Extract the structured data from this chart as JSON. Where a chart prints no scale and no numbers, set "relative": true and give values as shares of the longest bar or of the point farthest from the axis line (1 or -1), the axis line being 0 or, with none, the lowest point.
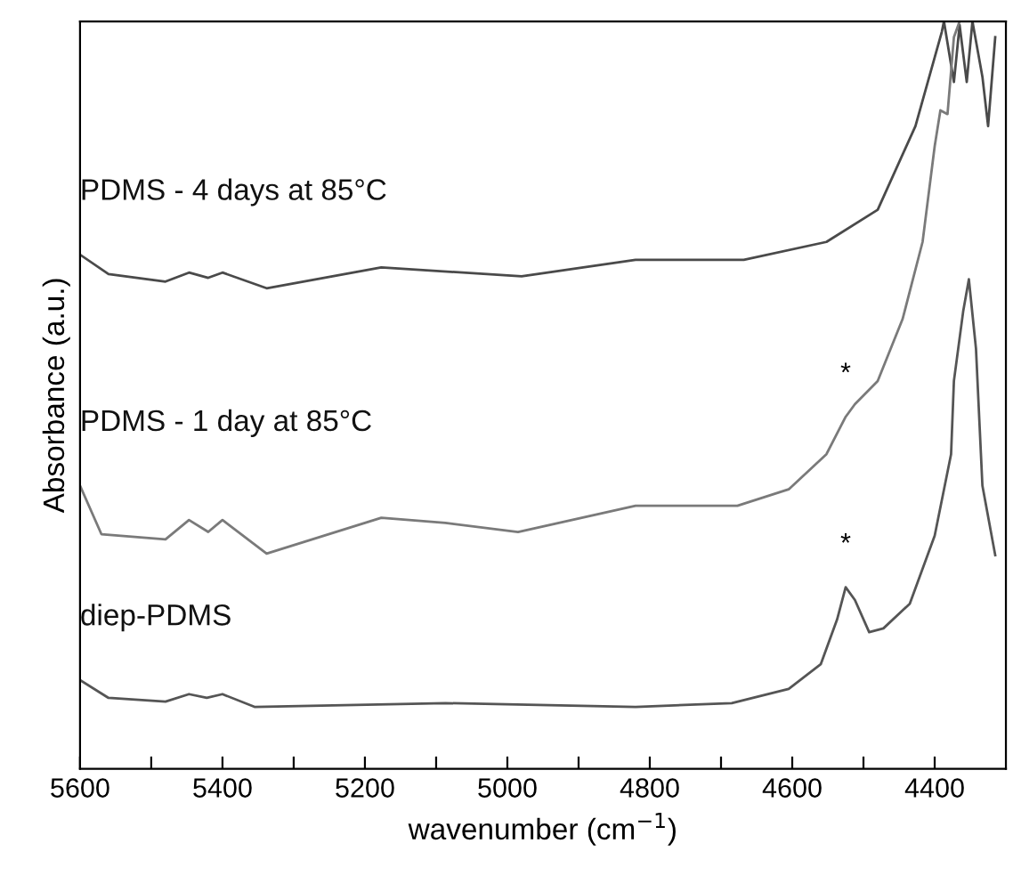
{
  "chart_data": {
    "type": "line",
    "relative": true,
    "xlabel": "wavenumber (cm$^{−1}$)",
    "ylabel": "Absorbance (a.u.)",
    "xlim": [
      5600,
      4300
    ],
    "xticks": [
      5600,
      {
        "value": 5500,
        "label": null
      },
      5400,
      {
        "value": 5300,
        "label": null
      },
      5200,
      {
        "value": 5100,
        "label": null
      },
      5000,
      {
        "value": 4900,
        "label": null
      },
      4800,
      {
        "value": 4700,
        "label": null
      },
      4600,
      {
        "value": 4500,
        "label": null
      },
      4400
    ],
    "marker": "none",
    "line_style": "solid",
    "grid": false,
    "series": [
      {
        "name": "PDMS - 4 days at 85°C",
        "color": "#4a4a4a",
        "x": [
          5600,
          5560,
          5480,
          5447,
          5420,
          5400,
          5338,
          5177,
          4980,
          4820,
          4668,
          4552,
          4480,
          4427,
          4390,
          4387,
          4373,
          4365,
          4355,
          4347,
          4333,
          4325,
          4315
        ],
        "values": [
          0.688,
          0.662,
          0.652,
          0.664,
          0.657,
          0.664,
          0.643,
          0.671,
          0.659,
          0.681,
          0.681,
          0.705,
          0.748,
          0.86,
          0.986,
          1.0,
          0.919,
          0.995,
          0.919,
          1.0,
          0.926,
          0.86,
          0.979
        ]
      },
      {
        "name": "PDMS - 1 day at 85°C",
        "color": "#7a7a7a",
        "x": [
          5600,
          5570,
          5480,
          5447,
          5420,
          5400,
          5338,
          5177,
          5087,
          4985,
          4820,
          4677,
          4605,
          4552,
          4525,
          4512,
          4480,
          4445,
          4417,
          4400,
          4392,
          4382,
          4373,
          4365
        ],
        "values": [
          0.379,
          0.314,
          0.307,
          0.333,
          0.317,
          0.333,
          0.288,
          0.336,
          0.329,
          0.317,
          0.352,
          0.352,
          0.374,
          0.421,
          0.471,
          0.488,
          0.519,
          0.602,
          0.705,
          0.833,
          0.881,
          0.876,
          0.979,
          1.0
        ]
      },
      {
        "name": "diep-PDMS",
        "color": "#555555",
        "x": [
          5600,
          5560,
          5480,
          5447,
          5422,
          5400,
          5355,
          5087,
          4820,
          4685,
          4605,
          4560,
          4537,
          4525,
          4512,
          4492,
          4472,
          4435,
          4400,
          4377,
          4373,
          4360,
          4352,
          4342,
          4333,
          4315
        ],
        "values": [
          0.119,
          0.095,
          0.09,
          0.1,
          0.095,
          0.1,
          0.083,
          0.088,
          0.083,
          0.088,
          0.107,
          0.14,
          0.2,
          0.243,
          0.226,
          0.183,
          0.188,
          0.221,
          0.312,
          0.421,
          0.519,
          0.612,
          0.655,
          0.562,
          0.379,
          0.286
        ]
      }
    ],
    "annotations": [
      {
        "text": "*",
        "x": 4525,
        "y": 0.471
      },
      {
        "text": "*",
        "x": 4525,
        "y": 0.243
      }
    ]
  }
}
